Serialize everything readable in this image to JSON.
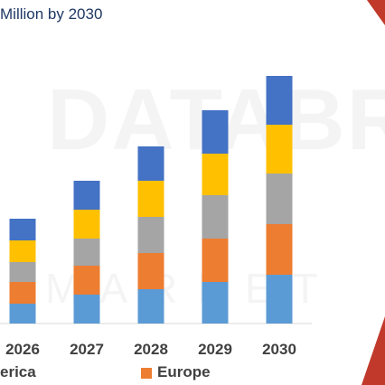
{
  "header": {
    "title_partial": "",
    "title_line2": "Million by 2030"
  },
  "colors": {
    "accent_red": "#c0392b"
  },
  "legend": [
    {
      "label": "erica",
      "color": "#5b9bd5"
    },
    {
      "label": "Europe",
      "color": "#ed7d31"
    }
  ],
  "chart_data": {
    "type": "bar",
    "stacked": true,
    "categories": [
      "2026",
      "2027",
      "2028",
      "2029",
      "2030"
    ],
    "series": [
      {
        "color": "#5b9bd5",
        "values": [
          22,
          32,
          38,
          46,
          54
        ]
      },
      {
        "color": "#ed7d31",
        "values": [
          24,
          32,
          40,
          48,
          56
        ]
      },
      {
        "color": "#a5a5a5",
        "values": [
          22,
          30,
          40,
          48,
          56
        ]
      },
      {
        "color": "#ffc000",
        "values": [
          24,
          32,
          40,
          46,
          54
        ]
      },
      {
        "color": "#4472c4",
        "values": [
          24,
          32,
          38,
          48,
          54
        ]
      }
    ],
    "ylim": [
      0,
      280
    ],
    "grid": false,
    "xlabel": "",
    "ylabel": "",
    "title": ""
  }
}
